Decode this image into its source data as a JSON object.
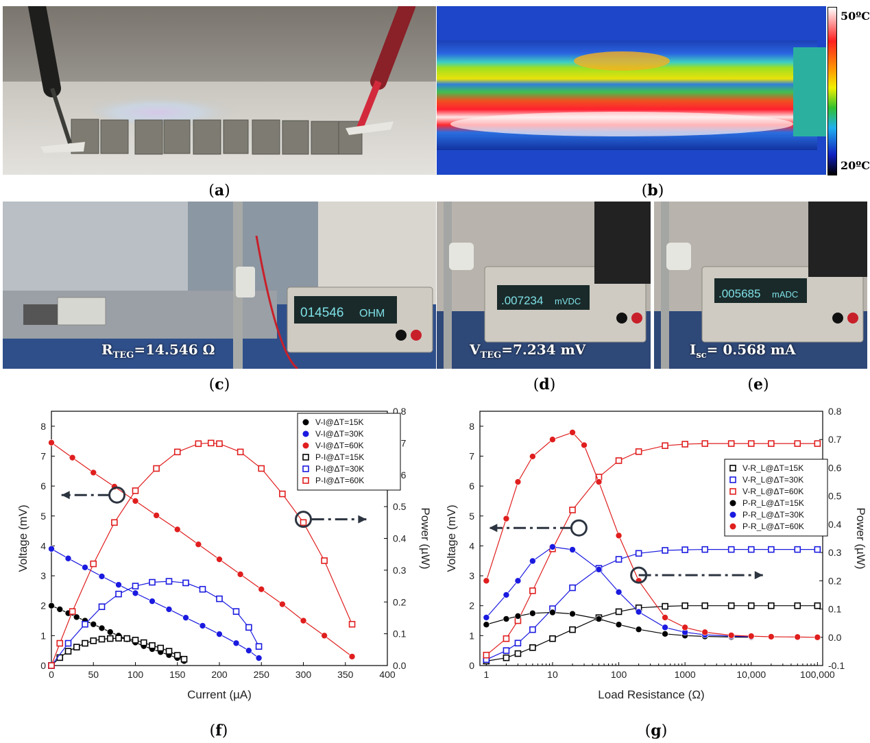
{
  "captions": {
    "a": "a",
    "b": "b",
    "c": "c",
    "d": "d",
    "e": "e",
    "f": "f",
    "g": "g"
  },
  "panel_b": {
    "scale_max": "50ºC",
    "scale_min": "20ºC"
  },
  "panel_c": {
    "label_main": "R",
    "label_sub": "TEG",
    "label_value": "=14.546 Ω",
    "meter_reading": "014546",
    "meter_unit": "OHM"
  },
  "panel_d": {
    "label_main": "V",
    "label_sub": "TEG",
    "label_value": "=7.234 mV",
    "meter_reading": ".007234",
    "meter_unit": "mVDC"
  },
  "panel_e": {
    "label_main": "I",
    "label_sub": "sc",
    "label_value": "= 0.568 mA",
    "meter_reading": ".005685",
    "meter_unit": "mADC"
  },
  "chart_data": [
    {
      "id": "f",
      "type": "scatter",
      "xlabel": "Current (µA)",
      "ylabel": "Voltage (mV)",
      "y2label": "Power (µW)",
      "xlim": [
        0,
        400
      ],
      "ylim": [
        0,
        8.5
      ],
      "y2lim": [
        0,
        0.8
      ],
      "xticks": [
        0,
        50,
        100,
        150,
        200,
        250,
        300,
        350,
        400
      ],
      "yticks": [
        0,
        1,
        2,
        3,
        4,
        5,
        6,
        7,
        8
      ],
      "y2ticks": [
        0.0,
        0.1,
        0.2,
        0.3,
        0.4,
        0.5,
        0.6,
        0.7,
        0.8
      ],
      "legend_position": "top-right",
      "series": [
        {
          "name": "V-I@ΔT=15K",
          "axis": "left",
          "color": "#000000",
          "marker": "circle",
          "x": [
            0,
            10,
            20,
            30,
            40,
            50,
            60,
            70,
            80,
            90,
            100,
            110,
            120,
            130,
            140,
            150,
            158
          ],
          "y": [
            2.0,
            1.88,
            1.75,
            1.62,
            1.5,
            1.38,
            1.25,
            1.12,
            1.0,
            0.88,
            0.77,
            0.65,
            0.55,
            0.45,
            0.35,
            0.25,
            0.15
          ]
        },
        {
          "name": "V-I@ΔT=30K",
          "axis": "left",
          "color": "#1a1ae0",
          "marker": "circle",
          "x": [
            0,
            20,
            40,
            60,
            80,
            100,
            120,
            140,
            160,
            180,
            200,
            220,
            235,
            247
          ],
          "y": [
            3.9,
            3.58,
            3.28,
            2.98,
            2.7,
            2.42,
            2.15,
            1.88,
            1.6,
            1.33,
            1.05,
            0.75,
            0.5,
            0.25
          ]
        },
        {
          "name": "V-I@ΔT=60K",
          "axis": "left",
          "color": "#e01e1e",
          "marker": "circle",
          "x": [
            0,
            25,
            50,
            75,
            100,
            125,
            150,
            175,
            200,
            225,
            250,
            275,
            300,
            325,
            358
          ],
          "y": [
            7.45,
            6.95,
            6.45,
            5.98,
            5.5,
            5.02,
            4.55,
            4.05,
            3.55,
            3.05,
            2.55,
            2.05,
            1.5,
            1.0,
            0.3
          ]
        },
        {
          "name": "P-I@ΔT=15K",
          "axis": "right",
          "color": "#000000",
          "marker": "square",
          "x": [
            0,
            10,
            20,
            30,
            40,
            50,
            60,
            70,
            80,
            90,
            100,
            110,
            120,
            130,
            140,
            150,
            158
          ],
          "y": [
            0.0,
            0.025,
            0.045,
            0.058,
            0.07,
            0.078,
            0.083,
            0.085,
            0.086,
            0.085,
            0.08,
            0.072,
            0.063,
            0.055,
            0.045,
            0.032,
            0.02
          ]
        },
        {
          "name": "P-I@ΔT=30K",
          "axis": "right",
          "color": "#1a1ae0",
          "marker": "square",
          "x": [
            0,
            20,
            40,
            60,
            80,
            100,
            120,
            140,
            160,
            180,
            200,
            220,
            235,
            247
          ],
          "y": [
            0.0,
            0.07,
            0.13,
            0.185,
            0.225,
            0.25,
            0.262,
            0.265,
            0.26,
            0.24,
            0.21,
            0.17,
            0.12,
            0.06
          ]
        },
        {
          "name": "P-I@ΔT=60K",
          "axis": "right",
          "color": "#e01e1e",
          "marker": "square",
          "x": [
            0,
            10,
            25,
            50,
            75,
            100,
            125,
            150,
            175,
            190,
            200,
            225,
            250,
            275,
            300,
            325,
            358
          ],
          "y": [
            0.0,
            0.07,
            0.17,
            0.32,
            0.45,
            0.55,
            0.62,
            0.672,
            0.698,
            0.7,
            0.698,
            0.672,
            0.62,
            0.54,
            0.45,
            0.33,
            0.13
          ]
        }
      ]
    },
    {
      "id": "g",
      "type": "scatter",
      "xlabel": "Load Resistance (Ω)",
      "ylabel": "Voltage (mV)",
      "y2label": "Power (µW)",
      "xscale": "log",
      "xlim": [
        0.8,
        120000
      ],
      "ylim": [
        0,
        8.5
      ],
      "y2lim": [
        -0.1,
        0.8
      ],
      "xticks": [
        1,
        10,
        100,
        1000,
        10000,
        100000
      ],
      "xtick_labels": [
        "1",
        "10",
        "100",
        "1000",
        "10,000",
        "100,000"
      ],
      "yticks": [
        0,
        1,
        2,
        3,
        4,
        5,
        6,
        7,
        8
      ],
      "y2ticks": [
        -0.1,
        0.0,
        0.1,
        0.2,
        0.3,
        0.4,
        0.5,
        0.6,
        0.7,
        0.8
      ],
      "legend_position": "right",
      "series": [
        {
          "name": "V-R_L@ΔT=15K",
          "axis": "left",
          "color": "#000000",
          "marker": "square",
          "x": [
            1,
            2,
            3,
            5,
            10,
            20,
            50,
            100,
            200,
            500,
            1000,
            2000,
            5000,
            10000,
            20000,
            50000,
            100000
          ],
          "y": [
            0.15,
            0.26,
            0.4,
            0.6,
            0.9,
            1.2,
            1.6,
            1.8,
            1.93,
            1.98,
            2.0,
            2.0,
            2.0,
            2.0,
            2.0,
            2.0,
            2.0
          ]
        },
        {
          "name": "V-R_L@ΔT=30K",
          "axis": "left",
          "color": "#1a1ae0",
          "marker": "square",
          "x": [
            1,
            2,
            3,
            5,
            10,
            20,
            50,
            100,
            200,
            500,
            1000,
            2000,
            5000,
            10000,
            20000,
            50000,
            100000
          ],
          "y": [
            0.2,
            0.5,
            0.75,
            1.2,
            1.9,
            2.6,
            3.25,
            3.55,
            3.75,
            3.85,
            3.87,
            3.88,
            3.88,
            3.88,
            3.88,
            3.88,
            3.88
          ]
        },
        {
          "name": "V-R_L@ΔT=60K",
          "axis": "left",
          "color": "#e01e1e",
          "marker": "square",
          "x": [
            1,
            2,
            3,
            5,
            10,
            20,
            50,
            100,
            200,
            500,
            1000,
            2000,
            5000,
            10000,
            20000,
            50000,
            100000
          ],
          "y": [
            0.35,
            0.9,
            1.5,
            2.5,
            3.9,
            5.2,
            6.3,
            6.85,
            7.15,
            7.35,
            7.4,
            7.42,
            7.42,
            7.42,
            7.42,
            7.42,
            7.42
          ]
        },
        {
          "name": "P-R_L@ΔT=15K",
          "axis": "right",
          "color": "#000000",
          "marker": "circle",
          "x": [
            1,
            2,
            3,
            5,
            10,
            20,
            50,
            100,
            200,
            500,
            1000,
            2000,
            5000,
            10000
          ],
          "y": [
            0.045,
            0.065,
            0.075,
            0.085,
            0.088,
            0.083,
            0.065,
            0.045,
            0.028,
            0.012,
            0.006,
            0.003,
            0.001,
            0.0
          ]
        },
        {
          "name": "P-R_L@ΔT=30K",
          "axis": "right",
          "color": "#1a1ae0",
          "marker": "circle",
          "x": [
            1,
            2,
            3,
            5,
            10,
            20,
            50,
            100,
            200,
            500,
            1000,
            2000,
            5000,
            10000
          ],
          "y": [
            0.07,
            0.15,
            0.2,
            0.27,
            0.32,
            0.31,
            0.24,
            0.16,
            0.09,
            0.035,
            0.018,
            0.009,
            0.004,
            0.002
          ]
        },
        {
          "name": "P-R_L@ΔT=60K",
          "axis": "right",
          "color": "#e01e1e",
          "marker": "circle",
          "x": [
            1,
            2,
            3,
            5,
            10,
            20,
            30,
            50,
            100,
            200,
            500,
            1000,
            2000,
            5000,
            10000,
            20000,
            50000,
            100000
          ],
          "y": [
            0.2,
            0.42,
            0.55,
            0.64,
            0.7,
            0.725,
            0.68,
            0.55,
            0.36,
            0.2,
            0.07,
            0.035,
            0.018,
            0.007,
            0.004,
            0.002,
            0.001,
            0.0
          ]
        }
      ]
    }
  ]
}
